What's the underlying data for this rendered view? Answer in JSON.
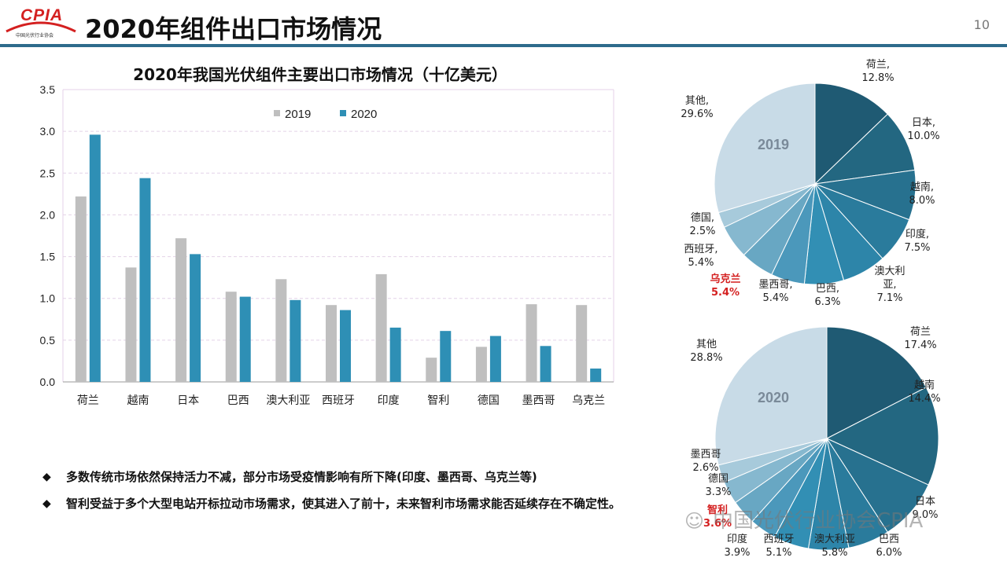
{
  "header": {
    "logo_text": "CPIA",
    "logo_subtitle": "中国光伏行业协会",
    "title": "2020年组件出口市场情况",
    "page_number": "10"
  },
  "colors": {
    "bar_2019": "#bfbfbf",
    "bar_2020": "#2e8fb5",
    "header_rule": "#2e6b8c",
    "highlight": "#d42020"
  },
  "chart_data": [
    {
      "type": "bar",
      "title": "2020年我国光伏组件主要出口市场情况（十亿美元）",
      "categories": [
        "荷兰",
        "越南",
        "日本",
        "巴西",
        "澳大利亚",
        "西班牙",
        "印度",
        "智利",
        "德国",
        "墨西哥",
        "乌克兰"
      ],
      "series": [
        {
          "name": "2019",
          "values": [
            2.22,
            1.37,
            1.72,
            1.08,
            1.23,
            0.92,
            1.29,
            0.29,
            0.42,
            0.93,
            0.92
          ]
        },
        {
          "name": "2020",
          "values": [
            2.96,
            2.44,
            1.53,
            1.02,
            0.98,
            0.86,
            0.65,
            0.61,
            0.55,
            0.43,
            0.16
          ]
        }
      ],
      "y_ticks": [
        "0.0",
        "0.5",
        "1.0",
        "1.5",
        "2.0",
        "2.5",
        "3.0",
        "3.5"
      ],
      "ylim": [
        0,
        3.5
      ],
      "xlabel": "",
      "ylabel": "",
      "grid": true,
      "legend_position": "top-right"
    },
    {
      "type": "pie",
      "title": "2019",
      "slices": [
        {
          "label": "荷兰,",
          "value_label": "12.8%",
          "value": 12.8,
          "color": "#1f5a73"
        },
        {
          "label": "日本,",
          "value_label": "10.0%",
          "value": 10.0,
          "color": "#236781"
        },
        {
          "label": "越南,",
          "value_label": "8.0%",
          "value": 8.0,
          "color": "#27718f"
        },
        {
          "label": "印度,",
          "value_label": "7.5%",
          "value": 7.5,
          "color": "#2a7b9c"
        },
        {
          "label": "澳大利",
          "label2": "亚,",
          "value_label": "7.1%",
          "value": 7.1,
          "color": "#2d85a9"
        },
        {
          "label": "巴西,",
          "value_label": "6.3%",
          "value": 6.3,
          "color": "#328fb4"
        },
        {
          "label": "墨西哥,",
          "value_label": "5.4%",
          "value": 5.4,
          "color": "#4b98bb"
        },
        {
          "label": "乌克兰",
          "value_label": "5.4%",
          "value": 5.4,
          "color": "#68a7c3",
          "highlight": true
        },
        {
          "label": "西班牙,",
          "value_label": "5.4%",
          "value": 5.4,
          "color": "#86b8cf"
        },
        {
          "label": "德国,",
          "value_label": "2.5%",
          "value": 2.5,
          "color": "#a7cadb"
        },
        {
          "label": "其他,",
          "value_label": "29.6%",
          "value": 29.6,
          "color": "#c8dbe7"
        }
      ]
    },
    {
      "type": "pie",
      "title": "2020",
      "slices": [
        {
          "label": "荷兰",
          "value_label": "17.4%",
          "value": 17.4,
          "color": "#1f5a73"
        },
        {
          "label": "越南",
          "value_label": "14.4%",
          "value": 14.4,
          "color": "#236781"
        },
        {
          "label": "日本",
          "value_label": "9.0%",
          "value": 9.0,
          "color": "#27718f"
        },
        {
          "label": "巴西",
          "value_label": "6.0%",
          "value": 6.0,
          "color": "#2a7b9c"
        },
        {
          "label": "澳大利亚",
          "value_label": "5.8%",
          "value": 5.8,
          "color": "#2d85a9"
        },
        {
          "label": "西班牙",
          "value_label": "5.1%",
          "value": 5.1,
          "color": "#328fb4"
        },
        {
          "label": "印度",
          "value_label": "3.9%",
          "value": 3.9,
          "color": "#4b98bb"
        },
        {
          "label": "智利",
          "value_label": "3.6%",
          "value": 3.6,
          "color": "#68a7c3",
          "highlight": true
        },
        {
          "label": "德国",
          "value_label": "3.3%",
          "value": 3.3,
          "color": "#86b8cf"
        },
        {
          "label": "墨西哥",
          "value_label": "2.6%",
          "value": 2.6,
          "color": "#a7cadb"
        },
        {
          "label": "其他",
          "value_label": "28.8%",
          "value": 28.8,
          "color": "#c8dbe7"
        }
      ]
    }
  ],
  "bullets": [
    {
      "icon": "diamond-icon",
      "text": "多数传统市场依然保持活力不减，部分市场受疫情影响有所下降(印度、墨西哥、乌克兰等)"
    },
    {
      "icon": "diamond-icon",
      "text": "智利受益于多个大型电站开标拉动市场需求，使其进入了前十，未来智利市场需求能否延续存在不确定性。"
    }
  ],
  "watermark": {
    "icon": "wechat-icon",
    "text": "中国光伏行业协会CPIA"
  }
}
